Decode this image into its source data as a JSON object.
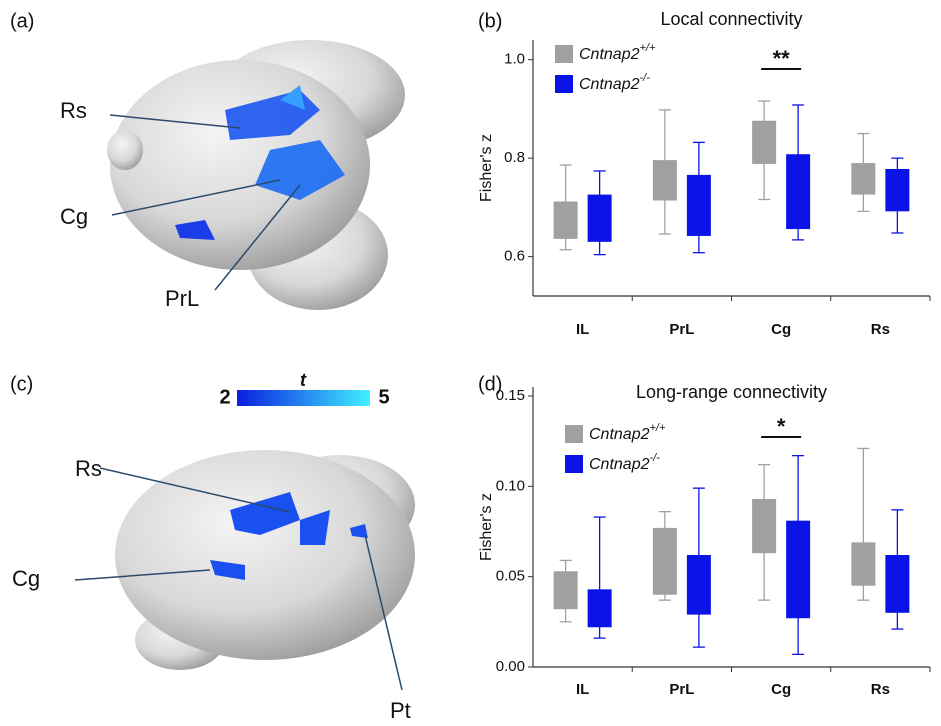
{
  "panels": {
    "a": "(a)",
    "b": "(b)",
    "c": "(c)",
    "d": "(d)"
  },
  "brain_a": {
    "labels": [
      "Rs",
      "Cg",
      "PrL"
    ]
  },
  "brain_c": {
    "labels": [
      "Rs",
      "Cg",
      "Pt"
    ]
  },
  "colorbar": {
    "label": "t",
    "min": 2,
    "max": 5
  },
  "chart_data": [
    {
      "type": "box",
      "title": "Local connectivity",
      "y_label": "Fisher's z",
      "categories": [
        "IL",
        "PrL",
        "Cg",
        "Rs"
      ],
      "ylim": [
        0.52,
        1.04
      ],
      "yticks": [
        0.6,
        0.8,
        {
          "value": 1.0,
          "label": "1.0"
        }
      ],
      "series": [
        {
          "name": "Cntnap2",
          "name_superscript": "+/+",
          "color": "#a0a0a0",
          "values": [
            {
              "low": 0.614,
              "q1": 0.636,
              "q3": 0.712,
              "high": 0.786
            },
            {
              "low": 0.646,
              "q1": 0.714,
              "q3": 0.796,
              "high": 0.898
            },
            {
              "low": 0.716,
              "q1": 0.788,
              "q3": 0.876,
              "high": 0.916
            },
            {
              "low": 0.692,
              "q1": 0.726,
              "q3": 0.79,
              "high": 0.85
            }
          ]
        },
        {
          "name": "Cntnap2",
          "name_superscript": "-/-",
          "color": "#0a14e6",
          "values": [
            {
              "low": 0.604,
              "q1": 0.63,
              "q3": 0.726,
              "high": 0.774
            },
            {
              "low": 0.608,
              "q1": 0.642,
              "q3": 0.766,
              "high": 0.832
            },
            {
              "low": 0.634,
              "q1": 0.656,
              "q3": 0.808,
              "high": 0.908
            },
            {
              "low": 0.648,
              "q1": 0.692,
              "q3": 0.778,
              "high": 0.8
            }
          ]
        }
      ],
      "annotations": [
        {
          "text": "**",
          "category": "Cg"
        }
      ]
    },
    {
      "type": "box",
      "title": "Long-range connectivity",
      "y_label": "Fisher's z",
      "categories": [
        "IL",
        "PrL",
        "Cg",
        "Rs"
      ],
      "ylim": [
        0,
        0.155
      ],
      "yticks": [
        {
          "value": 0,
          "label": "0.00"
        },
        {
          "value": 0.05,
          "label": "0.05"
        },
        {
          "value": 0.1,
          "label": "0.10"
        },
        {
          "value": 0.15,
          "label": "0.15"
        }
      ],
      "series": [
        {
          "name": "Cntnap2",
          "name_superscript": "+/+",
          "color": "#a0a0a0",
          "values": [
            {
              "low": 0.025,
              "q1": 0.032,
              "q3": 0.053,
              "high": 0.059
            },
            {
              "low": 0.037,
              "q1": 0.04,
              "q3": 0.077,
              "high": 0.086
            },
            {
              "low": 0.037,
              "q1": 0.063,
              "q3": 0.093,
              "high": 0.112
            },
            {
              "low": 0.037,
              "q1": 0.045,
              "q3": 0.069,
              "high": 0.121
            }
          ]
        },
        {
          "name": "Cntnap2",
          "name_superscript": "-/-",
          "color": "#0a14e6",
          "values": [
            {
              "low": 0.016,
              "q1": 0.022,
              "q3": 0.043,
              "high": 0.083
            },
            {
              "low": 0.011,
              "q1": 0.029,
              "q3": 0.062,
              "high": 0.099
            },
            {
              "low": 0.007,
              "q1": 0.027,
              "q3": 0.081,
              "high": 0.117
            },
            {
              "low": 0.021,
              "q1": 0.03,
              "q3": 0.062,
              "high": 0.087
            }
          ]
        }
      ],
      "annotations": [
        {
          "text": "*",
          "category": "Cg"
        }
      ]
    }
  ]
}
